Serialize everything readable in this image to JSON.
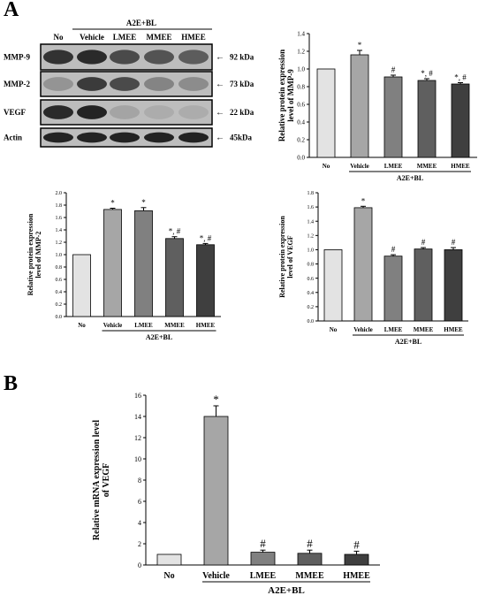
{
  "panel_labels": {
    "a": "A",
    "b": "B"
  },
  "colors": {
    "bars": [
      "#e3e3e3",
      "#a6a6a6",
      "#808080",
      "#5f5f5f",
      "#3f3f3f"
    ],
    "blot_background": "#bdbdbd",
    "band": "#1a1a1a"
  },
  "blot": {
    "treatment_header": "A2E+BL",
    "lanes": [
      "No",
      "Vehicle",
      "LMEE",
      "MMEE",
      "HMEE"
    ],
    "rows": [
      {
        "label": "MMP-9",
        "size": "92 kDa"
      },
      {
        "label": "MMP-2",
        "size": "73 kDa"
      },
      {
        "label": "VEGF",
        "size": "22 kDa"
      },
      {
        "label": "Actin",
        "size": "45kDa"
      }
    ]
  },
  "chart_data": [
    {
      "id": "mmp9",
      "type": "bar",
      "categories": [
        "No",
        "Vehicle",
        "LMEE",
        "MMEE",
        "HMEE"
      ],
      "values": [
        1.0,
        1.16,
        0.91,
        0.87,
        0.83
      ],
      "errors": [
        0,
        0.05,
        0.02,
        0.02,
        0.015
      ],
      "annotations": [
        "",
        "*",
        "#",
        "*, #",
        "*, #"
      ],
      "ylabel": "Relative protein expression\nlevel of MMP-9",
      "group_label": "A2E+BL",
      "ylim": [
        0,
        1.4
      ],
      "yticks": [
        "0.0",
        "0.2",
        "0.4",
        "0.6",
        "0.8",
        "1.0",
        "1.2",
        "1.4"
      ]
    },
    {
      "id": "mmp2",
      "type": "bar",
      "categories": [
        "No",
        "Vehicle",
        "LMEE",
        "MMEE",
        "HMEE"
      ],
      "values": [
        1.0,
        1.73,
        1.71,
        1.26,
        1.16
      ],
      "errors": [
        0,
        0.02,
        0.05,
        0.03,
        0.02
      ],
      "annotations": [
        "",
        "*",
        "*",
        "*, #",
        "*, #"
      ],
      "ylabel": "Relative protein expression\nlevel of MMP-2",
      "group_label": "A2E+BL",
      "ylim": [
        0,
        2.0
      ],
      "yticks": [
        "0.0",
        "0.2",
        "0.4",
        "0.6",
        "0.8",
        "1.0",
        "1.2",
        "1.4",
        "1.6",
        "1.8",
        "2.0"
      ]
    },
    {
      "id": "vegf_protein",
      "type": "bar",
      "categories": [
        "No",
        "Vehicle",
        "LMEE",
        "MMEE",
        "HMEE"
      ],
      "values": [
        1.0,
        1.59,
        0.91,
        1.01,
        1.0
      ],
      "errors": [
        0,
        0.02,
        0.02,
        0.02,
        0.03
      ],
      "annotations": [
        "",
        "*",
        "#",
        "#",
        "#"
      ],
      "ylabel": "Relative protein expression\nlevel of VEGF",
      "group_label": "A2E+BL",
      "ylim": [
        0,
        1.8
      ],
      "yticks": [
        "0.0",
        "0.2",
        "0.4",
        "0.6",
        "0.8",
        "1.0",
        "1.2",
        "1.4",
        "1.6",
        "1.8"
      ]
    },
    {
      "id": "vegf_mrna",
      "type": "bar",
      "categories": [
        "No",
        "Vehicle",
        "LMEE",
        "MMEE",
        "HMEE"
      ],
      "values": [
        1.0,
        14.0,
        1.2,
        1.1,
        1.0
      ],
      "errors": [
        0,
        1.0,
        0.2,
        0.3,
        0.3
      ],
      "annotations": [
        "",
        "*",
        "#",
        "#",
        "#"
      ],
      "ylabel": "Relative mRNA expression level\nof VEGF",
      "group_label": "A2E+BL",
      "ylim": [
        0,
        16
      ],
      "yticks": [
        "0",
        "2",
        "4",
        "6",
        "8",
        "10",
        "12",
        "14",
        "16"
      ]
    }
  ]
}
